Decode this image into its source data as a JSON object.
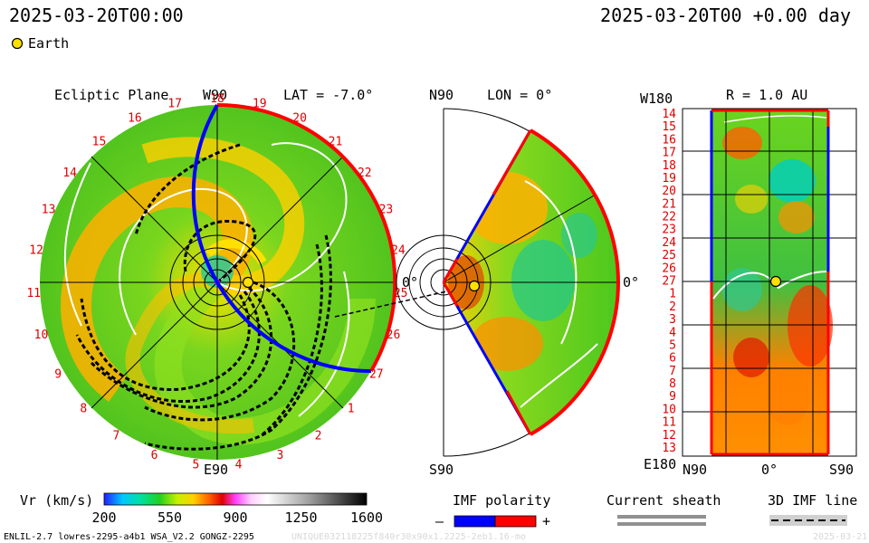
{
  "header": {
    "left_timestamp": "2025-03-20T00:00",
    "right_timestamp": "2025-03-20T00 +0.00 day",
    "earth_legend": "Earth"
  },
  "panels": {
    "ecliptic": {
      "title": "Ecliptic Plane",
      "top_label": "W90",
      "lat_label": "LAT = -7.0°",
      "right_label": "0°",
      "bottom_label": "E90",
      "rim_ticks": [
        "12",
        "13",
        "14",
        "15",
        "16",
        "17",
        "18",
        "19",
        "20",
        "21",
        "22",
        "23",
        "24",
        "25",
        "26",
        "27",
        "1",
        "2",
        "3",
        "4",
        "5",
        "6",
        "7",
        "8",
        "9",
        "10",
        "11"
      ]
    },
    "meridional": {
      "top_label": "N90",
      "lon_label": "LON = 0°",
      "right_label": "0°",
      "bottom_label": "S90"
    },
    "synoptic": {
      "top_left_label": "W180",
      "r_label": "R = 1.0 AU",
      "bottom_left_label": "E180",
      "x_ticks": [
        "N90",
        "0°",
        "S90"
      ],
      "rotation_ticks": [
        "14",
        "15",
        "16",
        "17",
        "18",
        "19",
        "20",
        "21",
        "22",
        "23",
        "24",
        "25",
        "26",
        "27",
        "1",
        "2",
        "3",
        "4",
        "5",
        "6",
        "7",
        "8",
        "9",
        "10",
        "11",
        "12",
        "13"
      ]
    }
  },
  "chart_data": {
    "type": "heatmap",
    "colorbar": {
      "label": "Vr (km/s)",
      "ticks": [
        200,
        550,
        900,
        1250,
        1600
      ],
      "range": [
        200,
        1600
      ]
    },
    "imf_polarity": {
      "label": "IMF polarity",
      "negative": "–",
      "positive": "+",
      "colors": [
        "#0000ff",
        "#ff0000"
      ]
    },
    "current_sheath": {
      "label": "Current sheath"
    },
    "imf_line": {
      "label": "3D IMF line"
    }
  },
  "footer": {
    "left": "ENLIL-2.7 lowres-2295-a4b1 WSA_V2.2 GONGZ-2295",
    "right": "UNIQUE032118225f840r30x90x1.2225-2eb1.16-mo",
    "date_faint": "2025-03-21"
  },
  "colors": {
    "earth": "#ffe000",
    "polarity_pos": "#ff0000",
    "polarity_neg": "#0000ff",
    "field_green": "#4cc81e"
  }
}
